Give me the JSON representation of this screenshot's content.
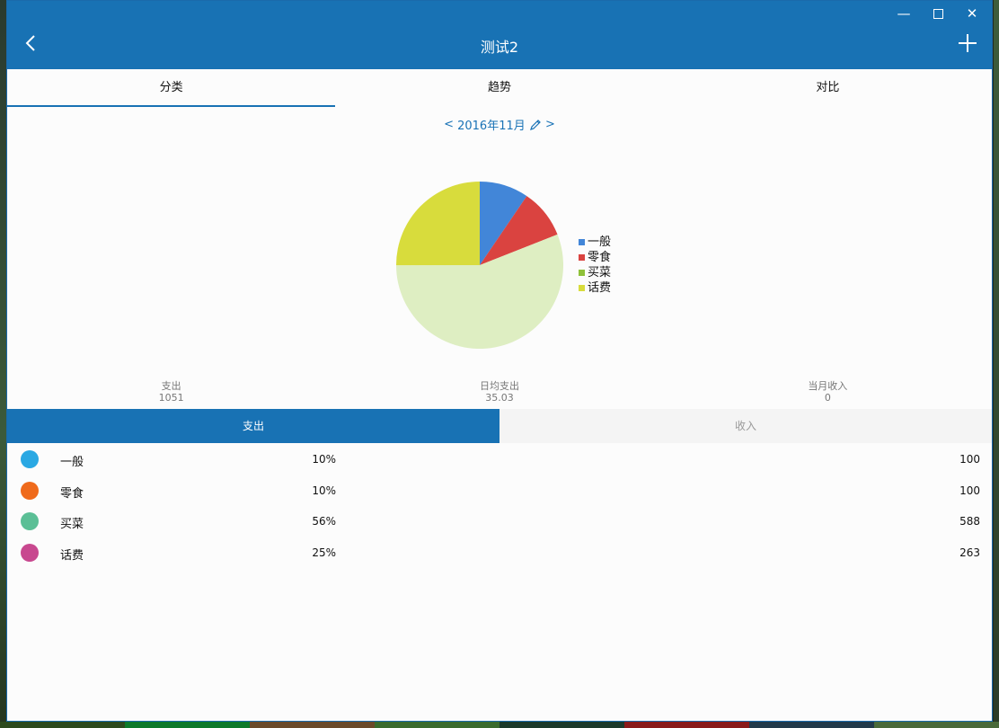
{
  "window": {
    "title": "测试2",
    "controls": {
      "minimize": "—",
      "close": "✕"
    }
  },
  "tabs": [
    {
      "label": "分类",
      "active": true
    },
    {
      "label": "趋势",
      "active": false
    },
    {
      "label": "对比",
      "active": false
    }
  ],
  "date_nav": {
    "prev": "<",
    "month": "2016年11月",
    "next": ">"
  },
  "chart_data": {
    "type": "pie",
    "categories": [
      "一般",
      "零食",
      "买菜",
      "话费"
    ],
    "values": [
      100,
      100,
      588,
      263
    ],
    "colors": [
      "#4286d8",
      "#da4340",
      "#deeec2",
      "#d8dc3c"
    ],
    "legend_colors": [
      "#4286d8",
      "#da4340",
      "#8fc13a",
      "#d8dc3c"
    ],
    "legend_position": "right"
  },
  "stats": [
    {
      "label": "支出",
      "value": "1051"
    },
    {
      "label": "日均支出",
      "value": "35.03"
    },
    {
      "label": "当月收入",
      "value": "0"
    }
  ],
  "segment": {
    "expense_label": "支出",
    "income_label": "收入",
    "active": "expense"
  },
  "items": [
    {
      "name": "一般",
      "percent": "10%",
      "amount": "100",
      "icon": "pie-icon",
      "icon_color": "#2aa8e3"
    },
    {
      "name": "零食",
      "percent": "10%",
      "amount": "100",
      "icon": "snack-icon",
      "icon_color": "#ef6a1b"
    },
    {
      "name": "买菜",
      "percent": "56%",
      "amount": "588",
      "icon": "vegetable-icon",
      "icon_color": "#5bbf96"
    },
    {
      "name": "话费",
      "percent": "25%",
      "amount": "263",
      "icon": "phone-bill-icon",
      "icon_color": "#c8488f"
    }
  ],
  "colors": {
    "accent": "#1872b4"
  }
}
